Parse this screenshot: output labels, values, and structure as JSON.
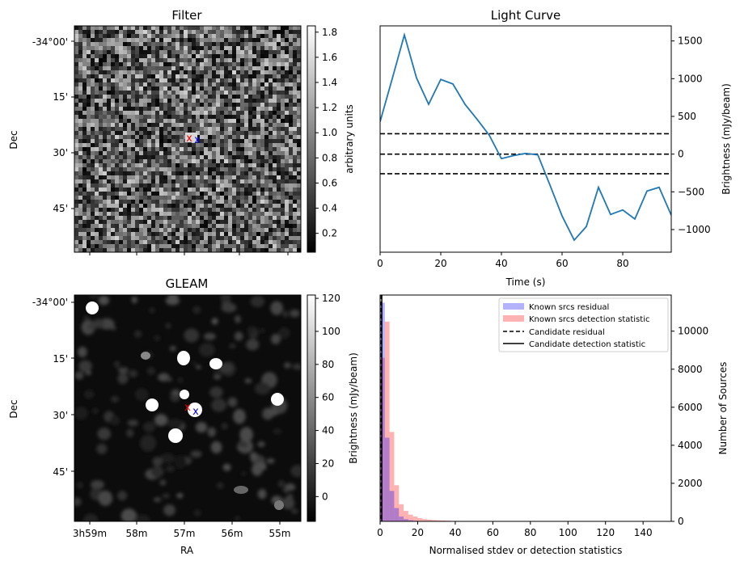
{
  "chart_data": [
    {
      "type": "heatmap",
      "title": "Filter",
      "xlabel": "",
      "ylabel": "Dec",
      "yticks": [
        "-34°00'",
        "15'",
        "30'",
        "45'"
      ],
      "colorbar": {
        "label": "arbitrary units",
        "min": 0.05,
        "max": 1.85,
        "ticks": [
          "0.2",
          "0.4",
          "0.6",
          "0.8",
          "1.0",
          "1.2",
          "1.4",
          "1.6",
          "1.8"
        ],
        "tick_values": [
          0.2,
          0.4,
          0.6,
          0.8,
          1.0,
          1.2,
          1.4,
          1.6,
          1.8
        ]
      },
      "markers": [
        {
          "label": "x",
          "color": "#ff0000"
        },
        {
          "label": "x",
          "color": "#0000ff"
        }
      ]
    },
    {
      "type": "line",
      "title": "Light Curve",
      "xlabel": "Time (s)",
      "ylabel": "Brightness (mJy/beam)",
      "xlim": [
        0,
        96
      ],
      "ylim": [
        -1300,
        1700
      ],
      "xticks": [
        0,
        20,
        40,
        60,
        80
      ],
      "yticks": [
        -1000,
        -500,
        0,
        500,
        1000,
        1500
      ],
      "x": [
        0,
        4,
        8,
        12,
        16,
        20,
        24,
        28,
        32,
        36,
        40,
        44,
        48,
        52,
        56,
        60,
        64,
        68,
        72,
        76,
        80,
        84,
        88,
        92,
        96
      ],
      "values": [
        430,
        1000,
        1580,
        1010,
        660,
        990,
        930,
        660,
        460,
        250,
        -60,
        -20,
        10,
        -10,
        -410,
        -820,
        -1140,
        -960,
        -440,
        -800,
        -740,
        -860,
        -490,
        -440,
        -810
      ],
      "hlines": [
        270,
        0,
        -260
      ],
      "line_color": "#1f77b4"
    },
    {
      "type": "heatmap",
      "title": "GLEAM",
      "xlabel": "RA",
      "ylabel": "Dec",
      "yticks": [
        "-34°00'",
        "15'",
        "30'",
        "45'"
      ],
      "xticks": [
        "3h59m",
        "58m",
        "57m",
        "56m",
        "55m"
      ],
      "colorbar": {
        "label": "Brightness (mJy/beam)",
        "min": -15,
        "max": 122,
        "ticks": [
          "0",
          "20",
          "40",
          "60",
          "80",
          "100",
          "120"
        ],
        "tick_values": [
          0,
          20,
          40,
          60,
          80,
          100,
          120
        ]
      },
      "markers": [
        {
          "label": "x",
          "color": "#ff0000"
        },
        {
          "label": "x",
          "color": "#0000ff"
        }
      ]
    },
    {
      "type": "bar",
      "title": "",
      "xlabel": "Normalised stdev or detection statistics",
      "ylabel": "Number of Sources",
      "xlim": [
        0,
        155
      ],
      "ylim": [
        0,
        11900
      ],
      "xticks": [
        0,
        20,
        40,
        60,
        80,
        100,
        120,
        140
      ],
      "yticks": [
        0,
        2000,
        4000,
        6000,
        8000,
        10000
      ],
      "bin_width": 2.5,
      "series": [
        {
          "name": "Known srcs residual",
          "color": "#0000ff",
          "x": [
            0,
            2.5,
            5,
            7.5,
            10,
            12.5,
            15,
            17.5,
            20
          ],
          "values": [
            11500,
            4400,
            1600,
            700,
            250,
            120,
            60,
            30,
            15
          ]
        },
        {
          "name": "Known srcs detection statistic",
          "color": "#ff0000",
          "x": [
            0,
            2.5,
            5,
            7.5,
            10,
            12.5,
            15,
            17.5,
            20,
            22.5,
            25,
            27.5,
            30,
            32.5,
            35,
            40,
            50,
            60,
            80,
            100,
            140
          ],
          "values": [
            8600,
            10500,
            4700,
            1900,
            900,
            550,
            350,
            250,
            170,
            120,
            90,
            70,
            55,
            45,
            35,
            25,
            15,
            10,
            8,
            6,
            5
          ]
        }
      ],
      "vlines": [
        {
          "name": "Candidate residual",
          "x": 0.6,
          "style": "dashed"
        },
        {
          "name": "Candidate detection statistic",
          "x": 0.9,
          "style": "solid"
        }
      ],
      "legend": "top-right"
    }
  ]
}
